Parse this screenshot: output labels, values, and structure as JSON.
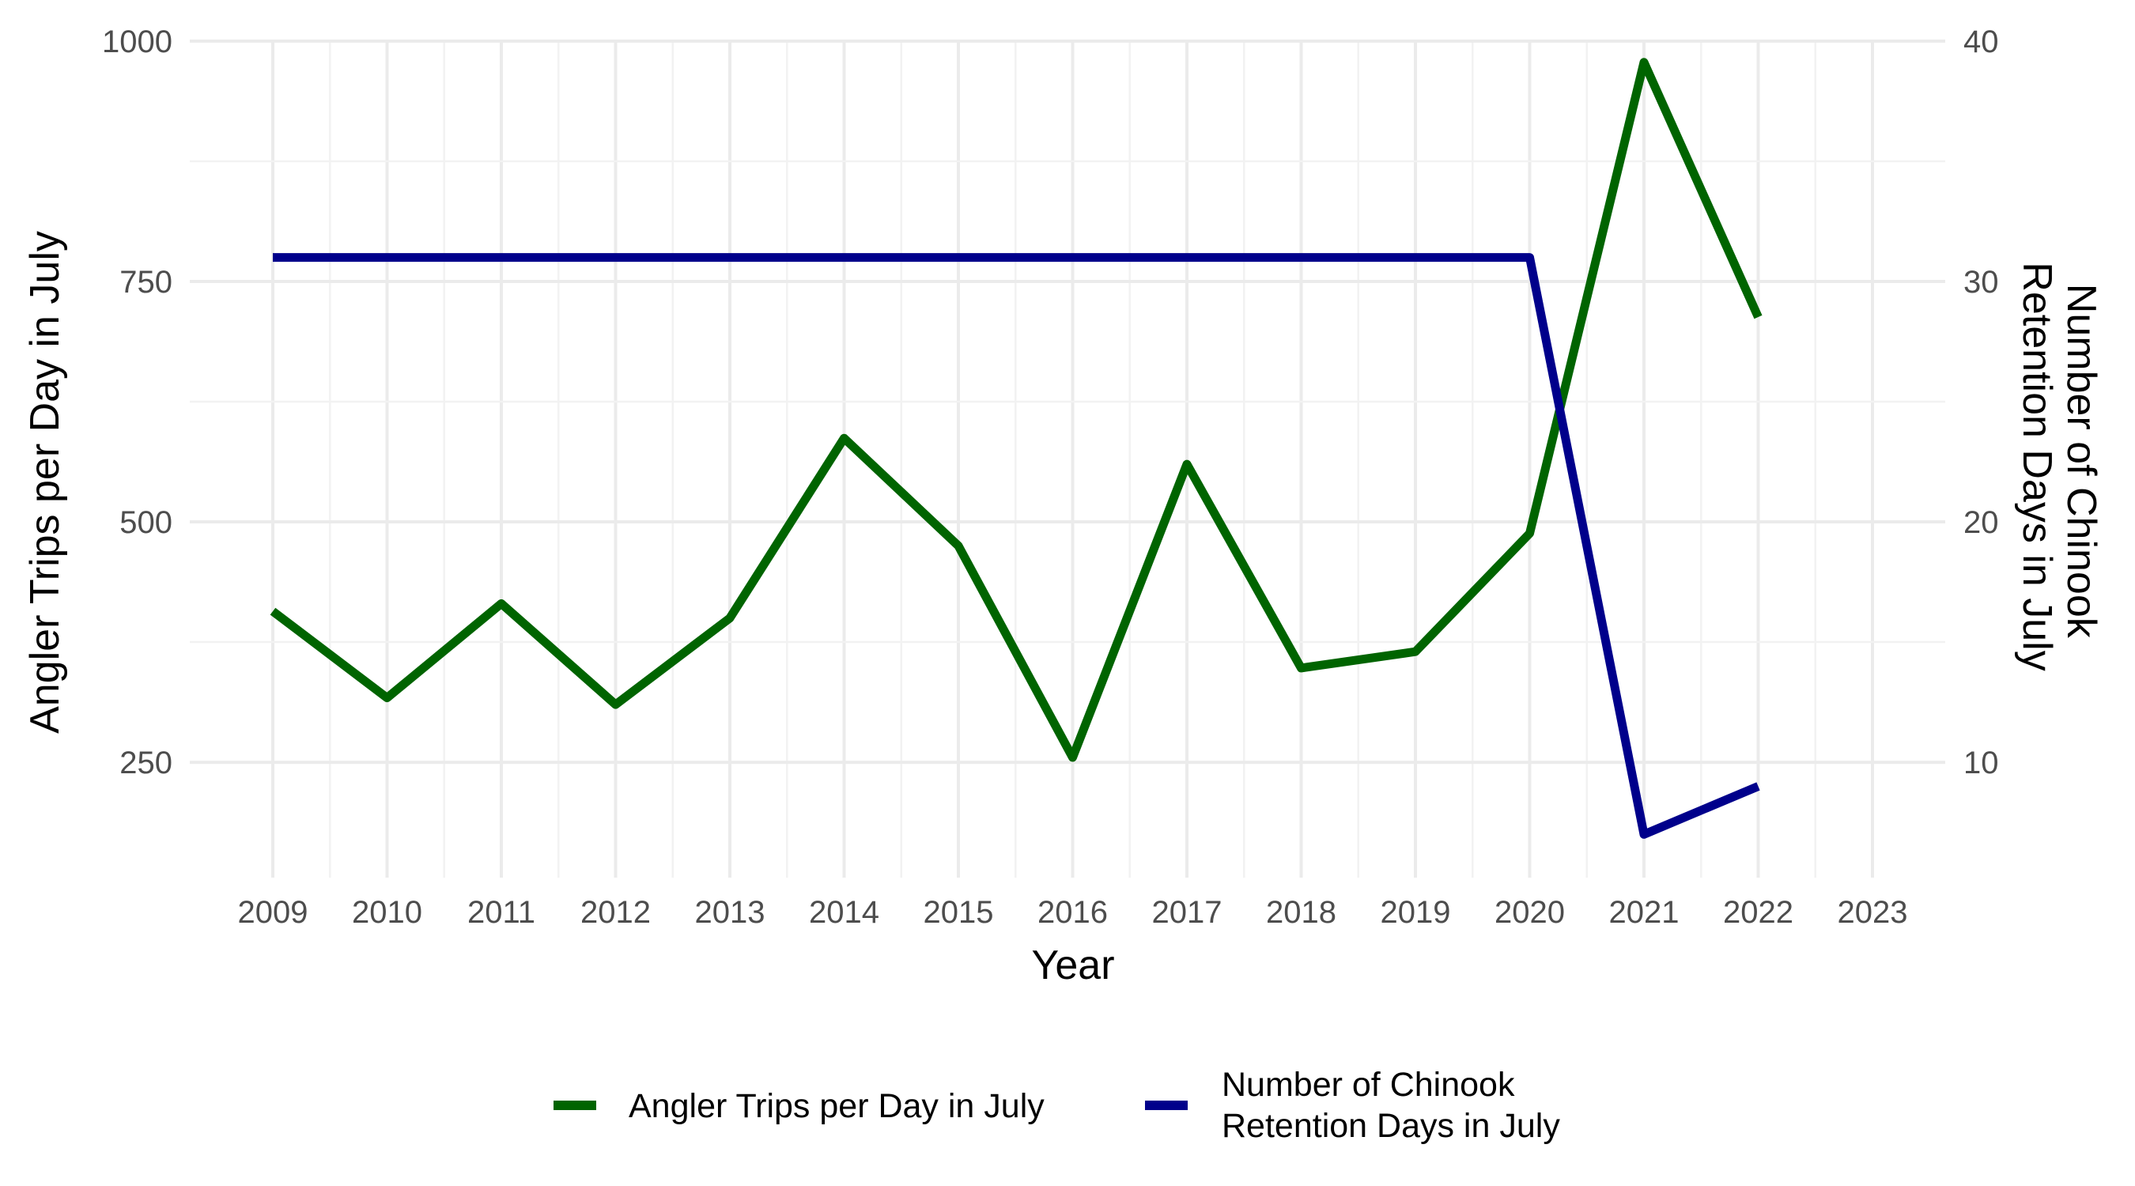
{
  "chart_data": {
    "type": "line",
    "xlabel": "Year",
    "ylabel_left": "Angler Trips per Day in July",
    "ylabel_right": [
      "Number of Chinook",
      "Retention Days in July"
    ],
    "x_ticks": [
      "2009",
      "2010",
      "2011",
      "2012",
      "2013",
      "2014",
      "2015",
      "2016",
      "2017",
      "2018",
      "2019",
      "2020",
      "2021",
      "2022",
      "2023"
    ],
    "xlim": [
      2009,
      2023
    ],
    "ylim_left": [
      130,
      1000
    ],
    "ylim_right": [
      5.2,
      40
    ],
    "y_ticks_left": [
      "250",
      "500",
      "750",
      "1000"
    ],
    "y_ticks_right": [
      "10",
      "20",
      "30",
      "40"
    ],
    "grid": true,
    "legend_position": "bottom",
    "series": [
      {
        "name": "Angler Trips per Day in July",
        "axis": "left",
        "color": "#006400",
        "x": [
          2009,
          2010,
          2011,
          2012,
          2013,
          2014,
          2015,
          2016,
          2017,
          2018,
          2019,
          2020,
          2021,
          2022
        ],
        "values": [
          407,
          317,
          415,
          310,
          400,
          587,
          475,
          255,
          560,
          348,
          365,
          488,
          978,
          713
        ]
      },
      {
        "name": "Number of Chinook Retention Days in July",
        "axis": "right",
        "color": "#00008B",
        "x": [
          2009,
          2010,
          2011,
          2012,
          2013,
          2014,
          2015,
          2016,
          2017,
          2018,
          2019,
          2020,
          2021,
          2022
        ],
        "values": [
          31,
          31,
          31,
          31,
          31,
          31,
          31,
          31,
          31,
          31,
          31,
          31,
          7,
          9
        ]
      }
    ],
    "legend": [
      {
        "label_lines": [
          "Angler Trips per Day in July"
        ],
        "color": "#006400"
      },
      {
        "label_lines": [
          "Number of Chinook",
          "Retention Days in July"
        ],
        "color": "#00008B"
      }
    ]
  }
}
